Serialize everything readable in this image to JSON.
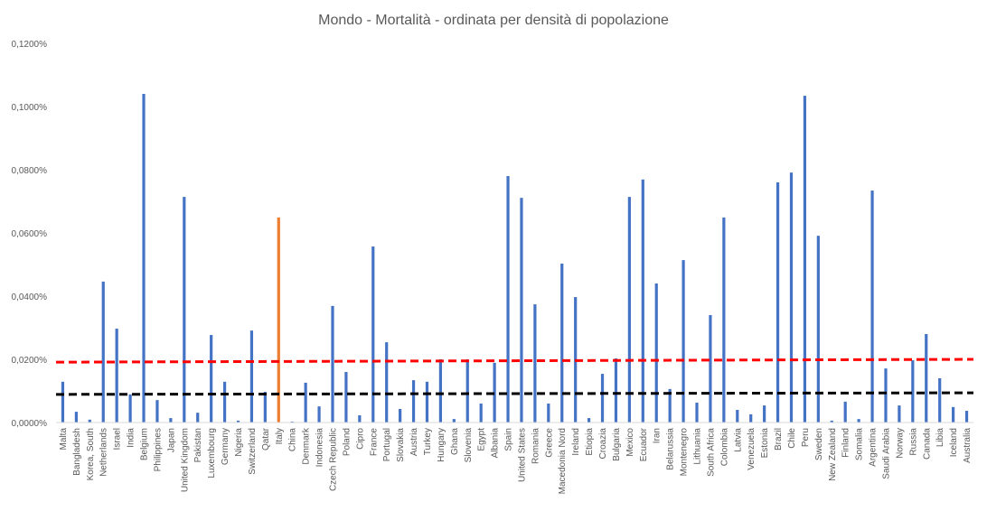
{
  "chart_data": {
    "type": "bar",
    "title": "Mondo - Mortalità - ordinata per densità di popolazione",
    "xlabel": "",
    "ylabel": "",
    "ylim": [
      0,
      0.12
    ],
    "yticks": [
      0,
      0.02,
      0.04,
      0.06,
      0.08,
      0.1,
      0.12
    ],
    "ytick_labels": [
      "0,0000%",
      "0,0200%",
      "0,0400%",
      "0,0600%",
      "0,0800%",
      "0,1000%",
      "0,1200%"
    ],
    "value_unit": "percent",
    "grid": false,
    "legend": "none",
    "bar_color": "#4472C4",
    "highlight_color": "#ED7D31",
    "highlight_category": "Italy",
    "categories": [
      "Malta",
      "Bangladesh",
      "Korea, South",
      "Netherlands",
      "Israel",
      "India",
      "Belgium",
      "Philippines",
      "Japan",
      "United Kingdom",
      "Pakistan",
      "Luxembourg",
      "Germany",
      "Nigeria",
      "Switzerland",
      "Qatar",
      "Italy",
      "China",
      "Denmark",
      "Indonesia",
      "Czech Republic",
      "Poland",
      "Cipro",
      "France",
      "Portugal",
      "Slovakia",
      "Austria",
      "Turkey",
      "Hungary",
      "Ghana",
      "Slovenia",
      "Egypt",
      "Albania",
      "Spain",
      "United States",
      "Romania",
      "Greece",
      "Macedonia Nord",
      "Ireland",
      "Etiopia",
      "Croazia",
      "Bulgaria",
      "Mexico",
      "Ecuador",
      "Iran",
      "Belarussia",
      "Montenegro",
      "Lithuania",
      "South Africa",
      "Colombia",
      "Latvia",
      "Venezuela",
      "Estonia",
      "Brazil",
      "Chile",
      "Peru",
      "Sweden",
      "New Zealand",
      "Finland",
      "Somalia",
      "Argentina",
      "Saudi Arabia",
      "Norway",
      "Russia",
      "Canada",
      "Libia",
      "Iceland",
      "Australia"
    ],
    "values": [
      0.0129,
      0.0034,
      0.0009,
      0.0446,
      0.0297,
      0.0089,
      0.104,
      0.0071,
      0.0014,
      0.0714,
      0.0031,
      0.0277,
      0.0129,
      0.0006,
      0.0291,
      0.0097,
      0.0649,
      0.0003,
      0.0126,
      0.0051,
      0.0369,
      0.016,
      0.0023,
      0.0557,
      0.0254,
      0.0043,
      0.0134,
      0.0129,
      0.02,
      0.0011,
      0.02,
      0.006,
      0.0189,
      0.078,
      0.0711,
      0.0374,
      0.006,
      0.0503,
      0.0397,
      0.0014,
      0.0154,
      0.0203,
      0.0714,
      0.0769,
      0.044,
      0.0106,
      0.0514,
      0.0063,
      0.034,
      0.0649,
      0.004,
      0.0026,
      0.0054,
      0.076,
      0.0791,
      0.1034,
      0.0591,
      0.0006,
      0.0066,
      0.0011,
      0.0734,
      0.0171,
      0.0054,
      0.0197,
      0.028,
      0.014,
      0.0049,
      0.0037
    ],
    "reference_lines": [
      {
        "name": "red-trend-line",
        "color": "#FF0000",
        "start": 0.0191,
        "end": 0.02
      },
      {
        "name": "black-trend-line",
        "color": "#000000",
        "start": 0.0089,
        "end": 0.0094
      }
    ]
  }
}
